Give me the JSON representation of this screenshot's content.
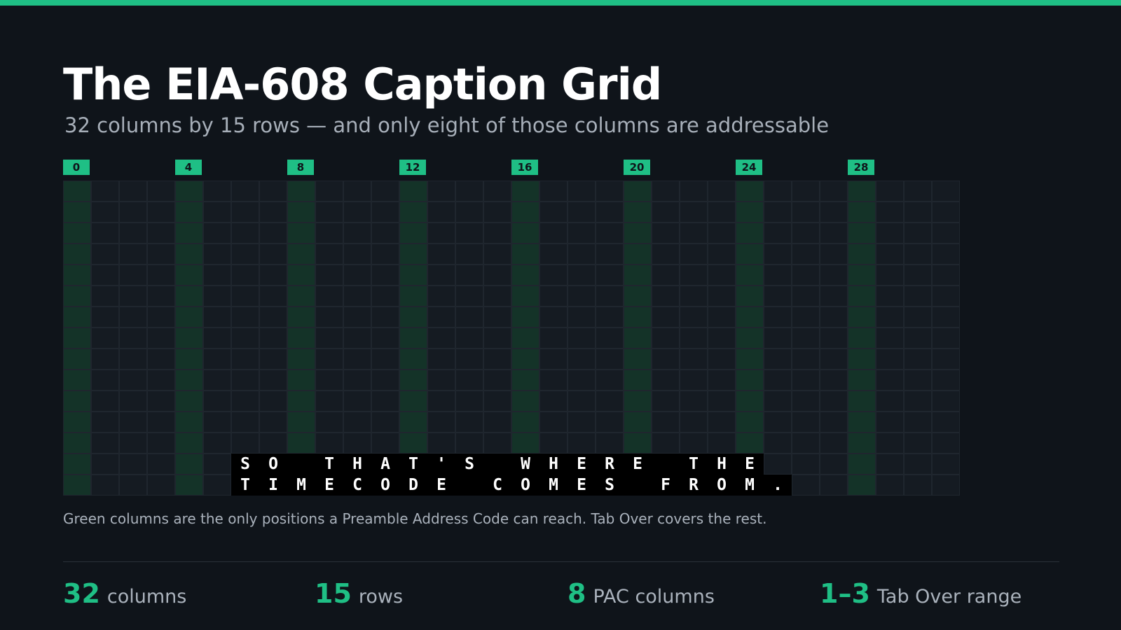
{
  "title": "The EIA-608 Caption Grid",
  "subtitle": "32 columns by 15 rows — and only eight of those columns are addressable",
  "colors": {
    "accent": "#1fbf85",
    "background": "#0f141a",
    "cell": "#151b22",
    "pac_cell": "#143328",
    "grid_line": "#1f262e"
  },
  "grid": {
    "columns": 32,
    "rows": 15,
    "pac_columns": [
      0,
      4,
      8,
      12,
      16,
      20,
      24,
      28
    ],
    "column_labels": [
      "0",
      "4",
      "8",
      "12",
      "16",
      "20",
      "24",
      "28"
    ]
  },
  "caption": {
    "lines": [
      {
        "row": 13,
        "start_col": 6,
        "text": "SO THAT'S WHERE THE"
      },
      {
        "row": 14,
        "start_col": 6,
        "text": "TIMECODE COMES FROM."
      }
    ]
  },
  "note": "Green columns are the only positions a Preamble Address Code can reach. Tab Over covers the rest.",
  "stats": [
    {
      "value": "32",
      "label": "columns"
    },
    {
      "value": "15",
      "label": "rows"
    },
    {
      "value": "8",
      "label": "PAC columns"
    },
    {
      "value": "1–3",
      "label": "Tab Over range"
    }
  ]
}
